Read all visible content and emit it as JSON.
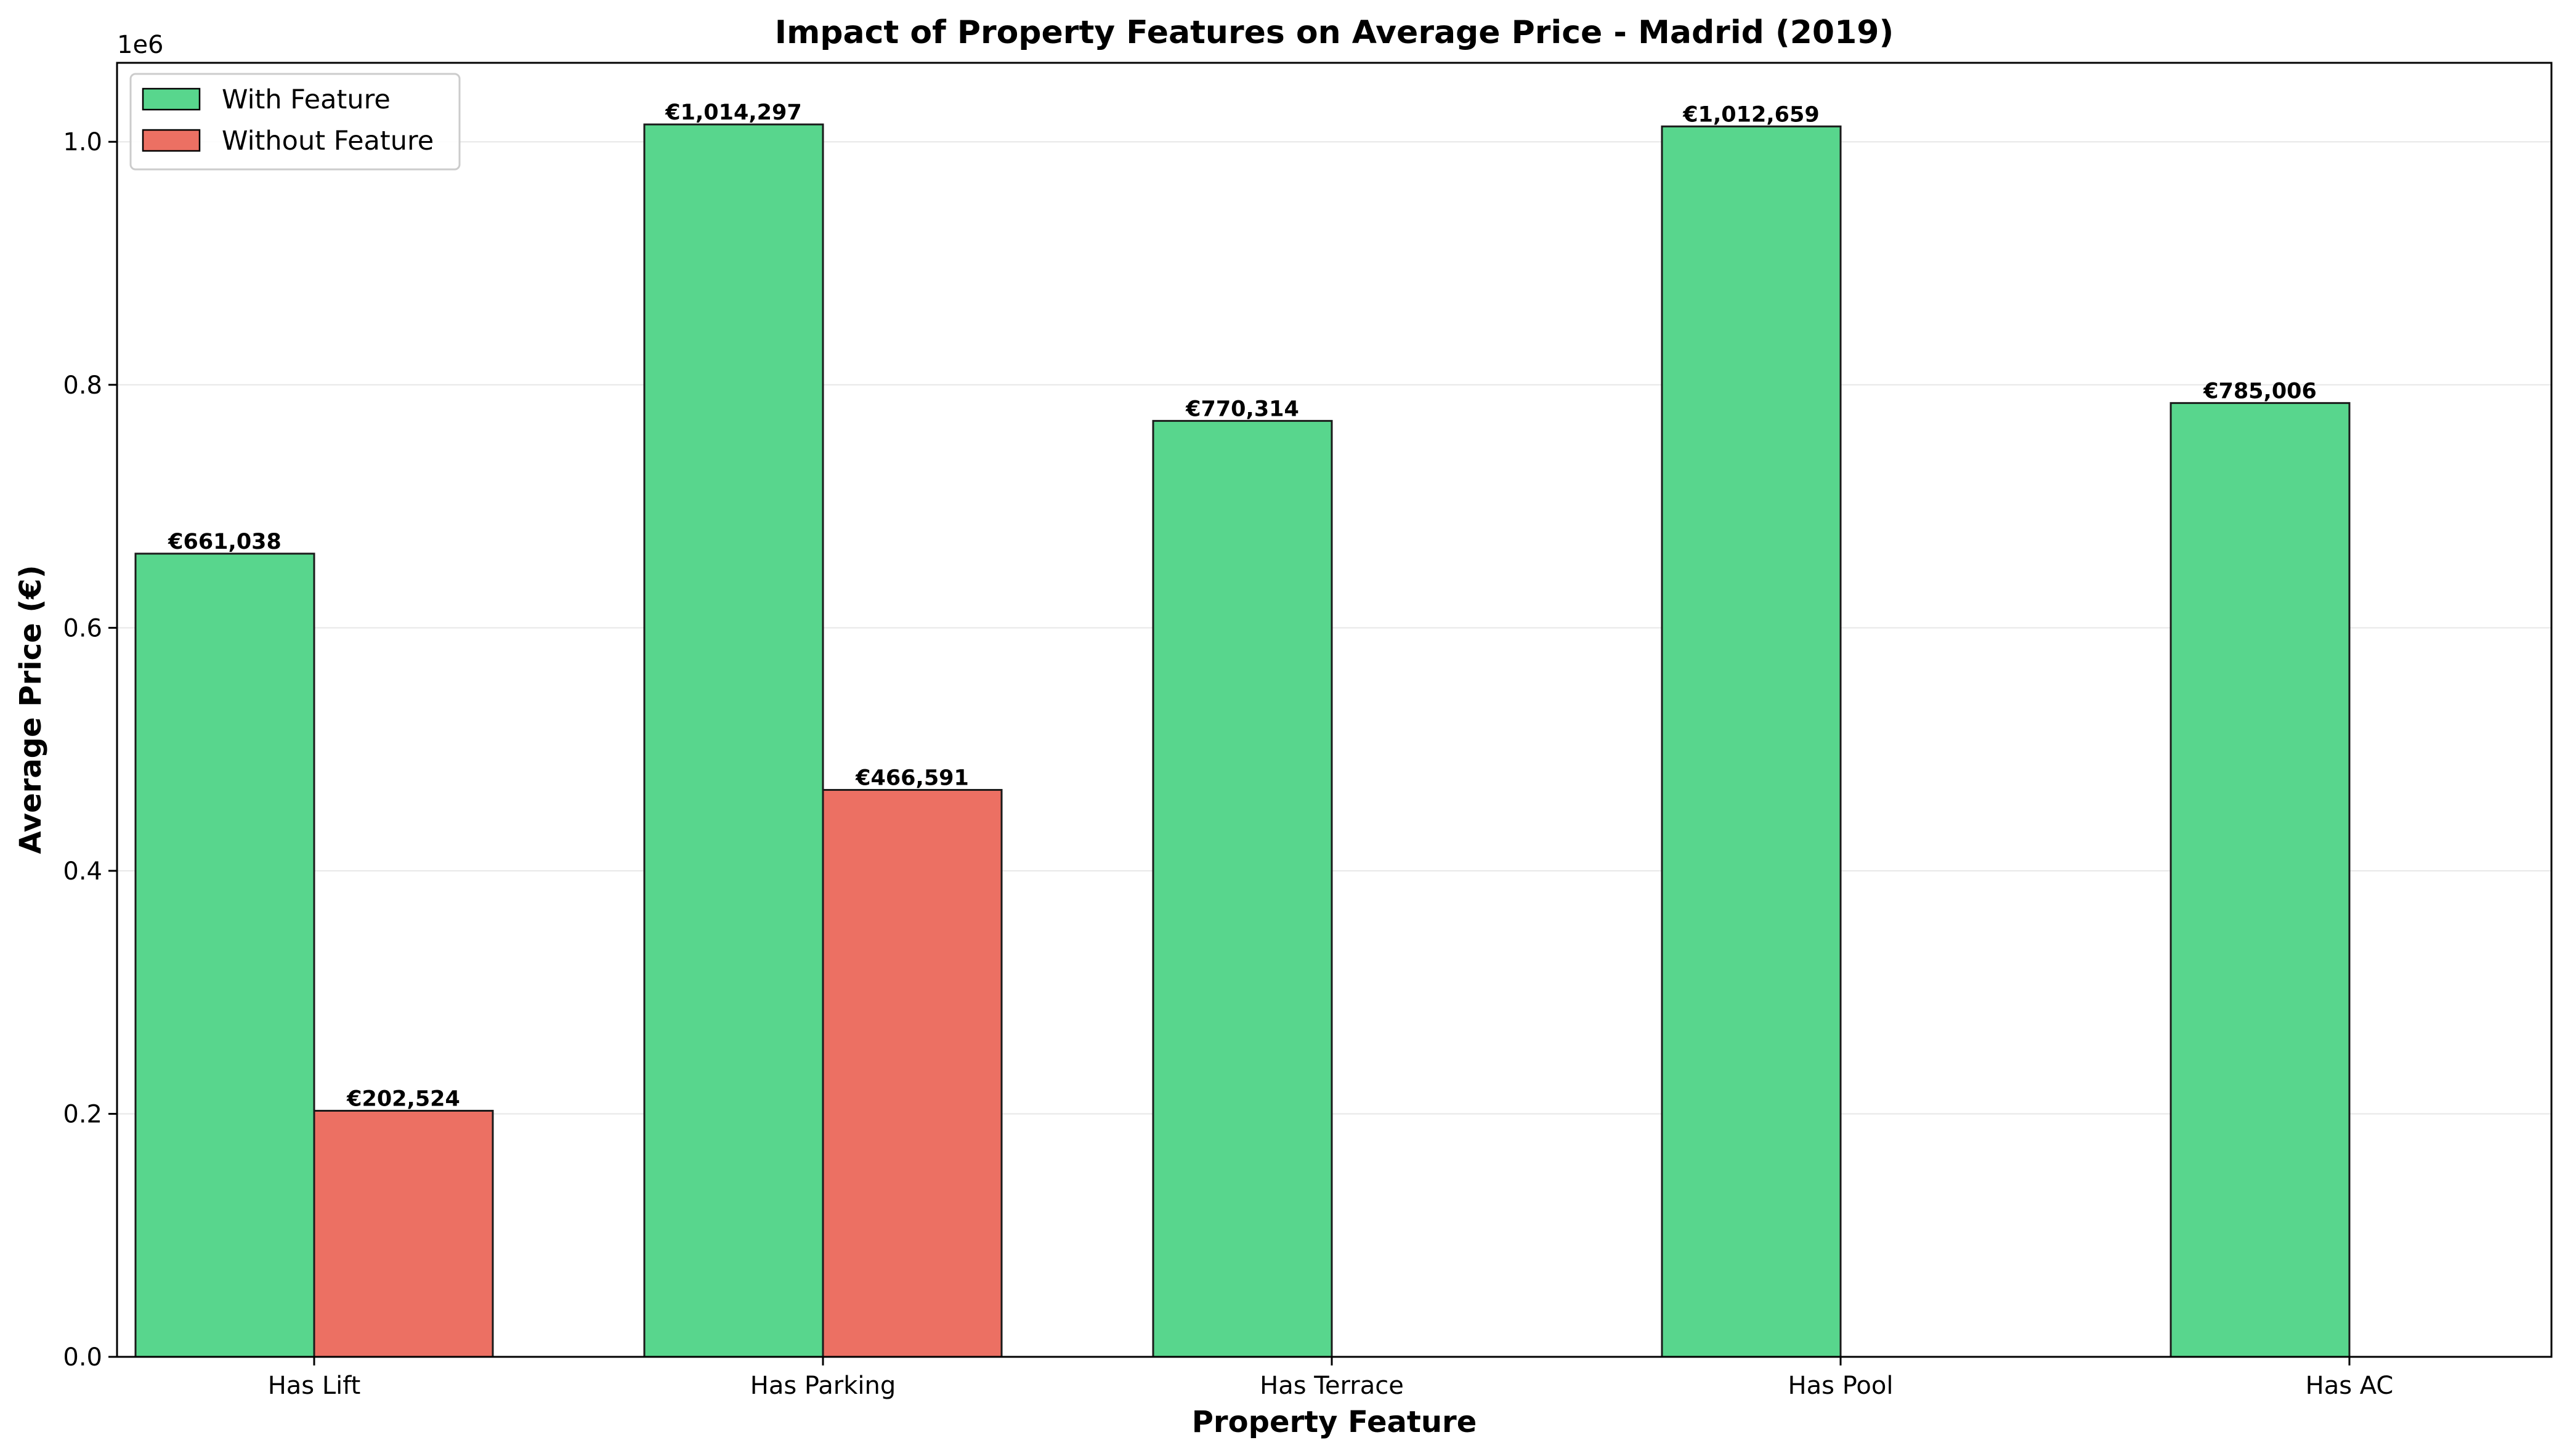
{
  "chart_data": {
    "type": "bar",
    "title": "Impact of Property Features on Average Price - Madrid (2019)",
    "xlabel": "Property Feature",
    "ylabel": "Average Price (€)",
    "y_offset_label": "1e6",
    "ylim": [
      0,
      1065000
    ],
    "yticks": [
      0,
      200000,
      400000,
      600000,
      800000,
      1000000
    ],
    "ytick_labels": [
      "0.0",
      "0.2",
      "0.4",
      "0.6",
      "0.8",
      "1.0"
    ],
    "grid": "y-axis",
    "legend_position": "top-left",
    "categories": [
      "Has Lift",
      "Has Parking",
      "Has Terrace",
      "Has Pool",
      "Has AC"
    ],
    "series": [
      {
        "name": "With Feature",
        "color": "#58d68d",
        "values": [
          661038,
          1014297,
          770314,
          1012659,
          785006
        ],
        "labels": [
          "€661,038",
          "€1,014,297",
          "€770,314",
          "€1,012,659",
          "€785,006"
        ]
      },
      {
        "name": "Without Feature",
        "color": "#ec7063",
        "values": [
          202524,
          466591,
          null,
          null,
          null
        ],
        "labels": [
          "€202,524",
          "€466,591",
          "",
          "",
          ""
        ]
      }
    ]
  }
}
